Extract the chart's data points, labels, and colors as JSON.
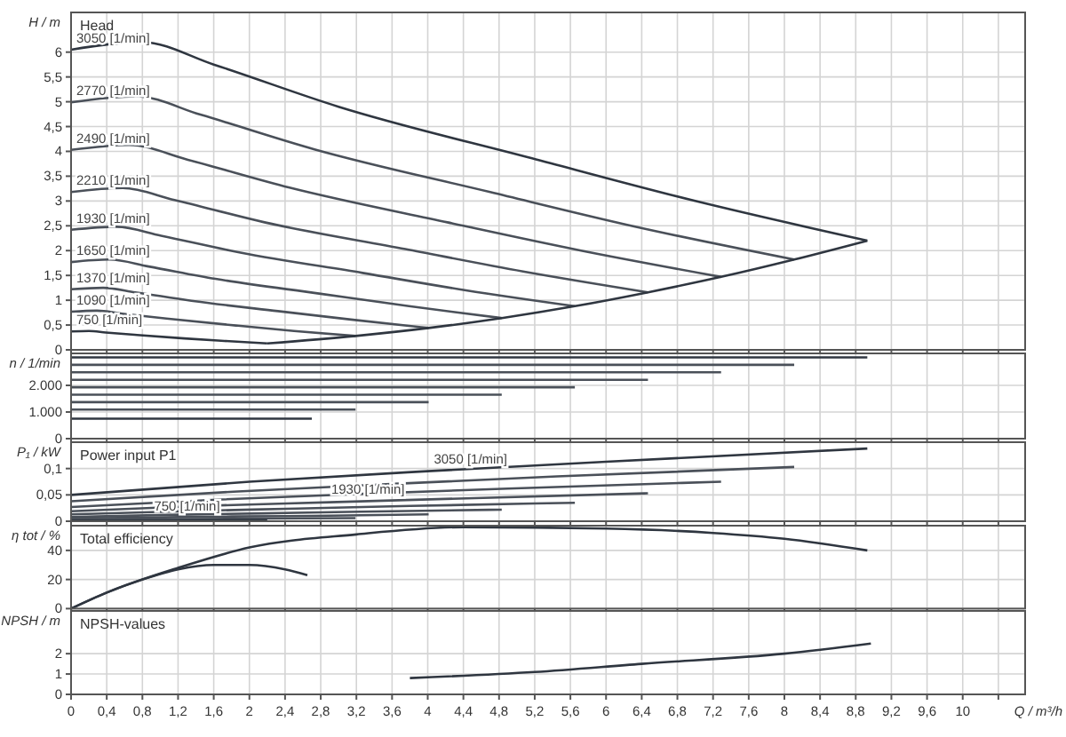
{
  "chart_data": [
    {
      "type": "line",
      "title": "Head",
      "ylabel": "H / m",
      "xlim": [
        0,
        10.7
      ],
      "ylim": [
        0,
        6.8
      ],
      "grid": true,
      "tick_labels": "y",
      "xticks": [
        0,
        0.4,
        0.8,
        1.2,
        1.6,
        2,
        2.4,
        2.8,
        3.2,
        3.6,
        4,
        4.4,
        4.8,
        5.2,
        5.6,
        6,
        6.4,
        6.8,
        7.2,
        7.6,
        8,
        8.4,
        8.8,
        9.2,
        9.6,
        10,
        10.4
      ],
      "yticks": [
        0,
        {
          "value": 0.5,
          "label": "0,5"
        },
        1,
        {
          "value": 1.5,
          "label": "1,5"
        },
        2,
        {
          "value": 2.5,
          "label": "2,5"
        },
        3,
        {
          "value": 3.5,
          "label": "3,5"
        },
        4,
        {
          "value": 4.5,
          "label": "4,5"
        },
        5,
        {
          "value": 5.5,
          "label": "5,5"
        },
        6
      ],
      "series": [
        {
          "name": "3050 [1/min]",
          "color": "#2f3640",
          "x": [
            0,
            0.8,
            1.6,
            3.0,
            5.17,
            7.0,
            8.93
          ],
          "values": [
            6.05,
            6.2,
            5.75,
            4.9,
            3.86,
            3.0,
            2.2
          ]
        },
        {
          "name": "2770 [1/min]",
          "color": "#4a5059",
          "x": [
            0,
            0.73,
            1.45,
            2.73,
            4.7,
            6.36,
            8.11
          ],
          "values": [
            4.99,
            5.11,
            4.74,
            4.04,
            3.18,
            2.47,
            1.82
          ]
        },
        {
          "name": "2490 [1/min]",
          "color": "#4a5059",
          "x": [
            0,
            0.65,
            1.31,
            2.45,
            4.22,
            5.72,
            7.29
          ],
          "values": [
            4.03,
            4.13,
            3.83,
            3.27,
            2.57,
            2.0,
            1.47
          ]
        },
        {
          "name": "2210 [1/min]",
          "color": "#4a5059",
          "x": [
            0,
            0.58,
            1.16,
            2.17,
            3.75,
            5.07,
            6.47
          ],
          "values": [
            3.18,
            3.26,
            3.02,
            2.57,
            2.03,
            1.58,
            1.16
          ]
        },
        {
          "name": "1930 [1/min]",
          "color": "#4a5059",
          "x": [
            0,
            0.51,
            1.01,
            1.9,
            3.27,
            4.43,
            5.65
          ],
          "values": [
            2.42,
            2.48,
            2.3,
            1.96,
            1.55,
            1.2,
            0.88
          ]
        },
        {
          "name": "1650 [1/min]",
          "color": "#4a5059",
          "x": [
            0,
            0.43,
            0.87,
            1.62,
            2.8,
            3.79,
            4.83
          ],
          "values": [
            1.77,
            1.82,
            1.68,
            1.43,
            1.13,
            0.88,
            0.64
          ]
        },
        {
          "name": "1370 [1/min]",
          "color": "#4a5059",
          "x": [
            0,
            0.36,
            0.72,
            1.35,
            2.32,
            3.14,
            4.01
          ],
          "values": [
            1.22,
            1.25,
            1.16,
            0.99,
            0.78,
            0.61,
            0.44
          ]
        },
        {
          "name": "1090 [1/min]",
          "color": "#4a5059",
          "x": [
            0,
            0.29,
            0.57,
            1.07,
            1.85,
            2.5,
            3.19
          ],
          "values": [
            0.77,
            0.79,
            0.73,
            0.63,
            0.49,
            0.38,
            0.28
          ]
        },
        {
          "name": "750 [1/min]",
          "color": "#2f3640",
          "x": [
            0,
            0.2,
            0.39,
            0.74,
            1.27,
            1.72,
            2.2
          ],
          "values": [
            0.37,
            0.38,
            0.35,
            0.3,
            0.23,
            0.18,
            0.13
          ]
        },
        {
          "color": "#2f3640",
          "x": [
            2.2,
            3.19,
            4.01,
            4.83,
            5.65,
            6.47,
            7.29,
            8.11,
            8.93
          ],
          "values": [
            0.13,
            0.28,
            0.44,
            0.64,
            0.88,
            1.16,
            1.47,
            1.82,
            2.2
          ]
        }
      ]
    },
    {
      "type": "line",
      "ylabel": "n / 1/min",
      "xlim": [
        0,
        10.7
      ],
      "ylim": [
        0,
        3200
      ],
      "grid": true,
      "tick_labels": "y",
      "xticks": [
        0,
        0.4,
        0.8,
        1.2,
        1.6,
        2,
        2.4,
        2.8,
        3.2,
        3.6,
        4,
        4.4,
        4.8,
        5.2,
        5.6,
        6,
        6.4,
        6.8,
        7.2,
        7.6,
        8,
        8.4,
        8.8,
        9.2,
        9.6,
        10,
        10.4
      ],
      "yticks": [
        0,
        {
          "value": 1000,
          "label": "1.000"
        },
        {
          "value": 2000,
          "label": "2.000"
        }
      ],
      "series": [
        {
          "color": "#2f3640",
          "x": [
            0,
            8.93
          ],
          "values": [
            3050,
            3050
          ]
        },
        {
          "color": "#4a5059",
          "x": [
            0,
            8.11
          ],
          "values": [
            2770,
            2770
          ]
        },
        {
          "color": "#4a5059",
          "x": [
            0,
            7.29
          ],
          "values": [
            2490,
            2490
          ]
        },
        {
          "color": "#4a5059",
          "x": [
            0,
            6.47
          ],
          "values": [
            2210,
            2210
          ]
        },
        {
          "color": "#4a5059",
          "x": [
            0,
            5.65
          ],
          "values": [
            1930,
            1930
          ]
        },
        {
          "color": "#4a5059",
          "x": [
            0,
            4.83
          ],
          "values": [
            1650,
            1650
          ]
        },
        {
          "color": "#4a5059",
          "x": [
            0,
            4.01
          ],
          "values": [
            1370,
            1370
          ]
        },
        {
          "color": "#4a5059",
          "x": [
            0,
            3.19
          ],
          "values": [
            1090,
            1090
          ]
        },
        {
          "color": "#2f3640",
          "x": [
            0,
            2.7
          ],
          "values": [
            750,
            750
          ]
        }
      ]
    },
    {
      "type": "line",
      "title": "Power input P1",
      "ylabel": "P₁ / kW",
      "xlim": [
        0,
        10.7
      ],
      "ylim": [
        0,
        0.15
      ],
      "grid": true,
      "tick_labels": "y",
      "xticks": [
        0,
        0.4,
        0.8,
        1.2,
        1.6,
        2,
        2.4,
        2.8,
        3.2,
        3.6,
        4,
        4.4,
        4.8,
        5.2,
        5.6,
        6,
        6.4,
        6.8,
        7.2,
        7.6,
        8,
        8.4,
        8.8,
        9.2,
        9.6,
        10,
        10.4
      ],
      "yticks": [
        0,
        {
          "value": 0.05,
          "label": "0,05"
        },
        {
          "value": 0.1,
          "label": "0,1"
        }
      ],
      "annotations": [
        {
          "text": "3050 [1/min]",
          "x": 4.48,
          "y": 0.109
        },
        {
          "text": "1930 [1/min]",
          "x": 3.33,
          "y": 0.052
        },
        {
          "text": "750 [1/min]",
          "x": 1.3,
          "y": 0.02
        }
      ],
      "series": [
        {
          "color": "#2f3640",
          "x": [
            0,
            2,
            4,
            6,
            8.93
          ],
          "values": [
            0.05,
            0.075,
            0.095,
            0.113,
            0.138
          ]
        },
        {
          "color": "#4a5059",
          "x": [
            0,
            1.82,
            3.63,
            5.45,
            8.11
          ],
          "values": [
            0.038,
            0.056,
            0.071,
            0.085,
            0.103
          ]
        },
        {
          "color": "#4a5059",
          "x": [
            0,
            1.63,
            3.27,
            4.9,
            7.29
          ],
          "values": [
            0.027,
            0.041,
            0.052,
            0.062,
            0.075
          ]
        },
        {
          "color": "#4a5059",
          "x": [
            0,
            1.45,
            2.9,
            4.35,
            6.47
          ],
          "values": [
            0.019,
            0.029,
            0.036,
            0.043,
            0.053
          ]
        },
        {
          "color": "#4a5059",
          "x": [
            0,
            1.27,
            2.53,
            3.8,
            5.65
          ],
          "values": [
            0.013,
            0.019,
            0.024,
            0.029,
            0.035
          ]
        },
        {
          "color": "#4a5059",
          "x": [
            0,
            1.08,
            2.16,
            3.25,
            4.83
          ],
          "values": [
            0.008,
            0.012,
            0.015,
            0.018,
            0.022
          ]
        },
        {
          "color": "#4a5059",
          "x": [
            0,
            0.9,
            1.8,
            2.7,
            4.01
          ],
          "values": [
            0.005,
            0.007,
            0.009,
            0.01,
            0.013
          ]
        },
        {
          "color": "#4a5059",
          "x": [
            0,
            0.72,
            1.43,
            2.14,
            3.19
          ],
          "values": [
            0.002,
            0.003,
            0.004,
            0.005,
            0.006
          ]
        },
        {
          "color": "#2f3640",
          "x": [
            0,
            0.49,
            0.98,
            1.48,
            2.2
          ],
          "values": [
            0.001,
            0.001,
            0.001,
            0.002,
            0.002
          ]
        }
      ]
    },
    {
      "type": "line",
      "title": "Total efficiency",
      "ylabel": "η tot / %",
      "xlim": [
        0,
        10.7
      ],
      "ylim": [
        0,
        57
      ],
      "grid": true,
      "tick_labels": "y",
      "xticks": [
        0,
        0.4,
        0.8,
        1.2,
        1.6,
        2,
        2.4,
        2.8,
        3.2,
        3.6,
        4,
        4.4,
        4.8,
        5.2,
        5.6,
        6,
        6.4,
        6.8,
        7.2,
        7.6,
        8,
        8.4,
        8.8,
        9.2,
        9.6,
        10,
        10.4
      ],
      "yticks": [
        0,
        20,
        40
      ],
      "series": [
        {
          "color": "#2f3640",
          "x": [
            0,
            0.4,
            1.2,
            2,
            3.2,
            4.4,
            6,
            7.2,
            8,
            8.93
          ],
          "values": [
            0,
            11,
            28,
            42,
            51,
            56,
            55,
            52,
            48,
            40
          ]
        },
        {
          "color": "#2f3640",
          "x": [
            0,
            0.4,
            0.8,
            1.2,
            1.6,
            2,
            2.4,
            2.65
          ],
          "values": [
            0,
            11,
            20,
            27,
            30,
            30,
            27,
            23
          ]
        }
      ]
    },
    {
      "type": "line",
      "title": "NPSH-values",
      "ylabel": "NPSH / m",
      "xlabel": "Q / m³/h",
      "xlim": [
        0,
        10.7
      ],
      "ylim": [
        0,
        4.1
      ],
      "grid": true,
      "xticks": [
        0,
        {
          "value": 0.4,
          "label": "0,4"
        },
        {
          "value": 0.8,
          "label": "0,8"
        },
        {
          "value": 1.2,
          "label": "1,2"
        },
        {
          "value": 1.6,
          "label": "1,6"
        },
        2,
        {
          "value": 2.4,
          "label": "2,4"
        },
        {
          "value": 2.8,
          "label": "2,8"
        },
        {
          "value": 3.2,
          "label": "3,2"
        },
        {
          "value": 3.6,
          "label": "3,6"
        },
        4,
        {
          "value": 4.4,
          "label": "4,4"
        },
        {
          "value": 4.8,
          "label": "4,8"
        },
        {
          "value": 5.2,
          "label": "5,2"
        },
        {
          "value": 5.6,
          "label": "5,6"
        },
        6,
        {
          "value": 6.4,
          "label": "6,4"
        },
        {
          "value": 6.8,
          "label": "6,8"
        },
        {
          "value": 7.2,
          "label": "7,2"
        },
        {
          "value": 7.6,
          "label": "7,6"
        },
        8,
        {
          "value": 8.4,
          "label": "8,4"
        },
        {
          "value": 8.8,
          "label": "8,8"
        },
        {
          "value": 9.2,
          "label": "9,2"
        },
        {
          "value": 9.6,
          "label": "9,6"
        },
        10,
        {
          "value": 10.4,
          "label": null
        }
      ],
      "yticks": [
        0,
        1,
        2
      ],
      "series": [
        {
          "color": "#2f3640",
          "x": [
            3.8,
            5.2,
            6.4,
            8,
            8.97
          ],
          "values": [
            0.8,
            1.1,
            1.5,
            2.0,
            2.5
          ]
        }
      ]
    }
  ]
}
